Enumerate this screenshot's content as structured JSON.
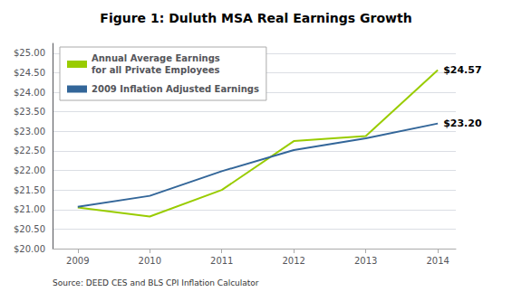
{
  "chart_data": {
    "type": "line",
    "title": "Figure 1: Duluth MSA Real Earnings Growth",
    "x": [
      2009,
      2010,
      2011,
      2012,
      2013,
      2014
    ],
    "series": [
      {
        "name": "Annual Average Earnings\nfor all Private Employees",
        "color": "#99cc00",
        "values": [
          21.05,
          20.82,
          21.5,
          22.75,
          22.88,
          24.57
        ]
      },
      {
        "name": "2009 Inflation Adjusted Earnings",
        "color": "#336699",
        "values": [
          21.07,
          21.35,
          21.98,
          22.52,
          22.82,
          23.2
        ]
      }
    ],
    "xlim": [
      2008.65,
      2014.25
    ],
    "xticks": [
      2009,
      2010,
      2011,
      2012,
      2013,
      2014
    ],
    "ylim": [
      20.0,
      25.25
    ],
    "yticks": [
      {
        "value": 20.0,
        "label": "$20.00"
      },
      {
        "value": 20.5,
        "label": "$20.50"
      },
      {
        "value": 21.0,
        "label": "$21.00"
      },
      {
        "value": 21.5,
        "label": "$21.50"
      },
      {
        "value": 22.0,
        "label": "$22.00"
      },
      {
        "value": 22.5,
        "label": "$22.50"
      },
      {
        "value": 23.0,
        "label": "$23.00"
      },
      {
        "value": 23.5,
        "label": "$23.50"
      },
      {
        "value": 24.0,
        "label": "$24.00"
      },
      {
        "value": 24.5,
        "label": "$24.50"
      },
      {
        "value": 25.0,
        "label": "$25.00"
      }
    ],
    "annotations": [
      {
        "text": "$24.57",
        "x": 2014,
        "y": 24.57
      },
      {
        "text": "$23.20",
        "x": 2014,
        "y": 23.2
      }
    ],
    "source": "Source: DEED CES and BLS CPI Inflation Calculator",
    "grid": true,
    "legend": "upper left"
  }
}
